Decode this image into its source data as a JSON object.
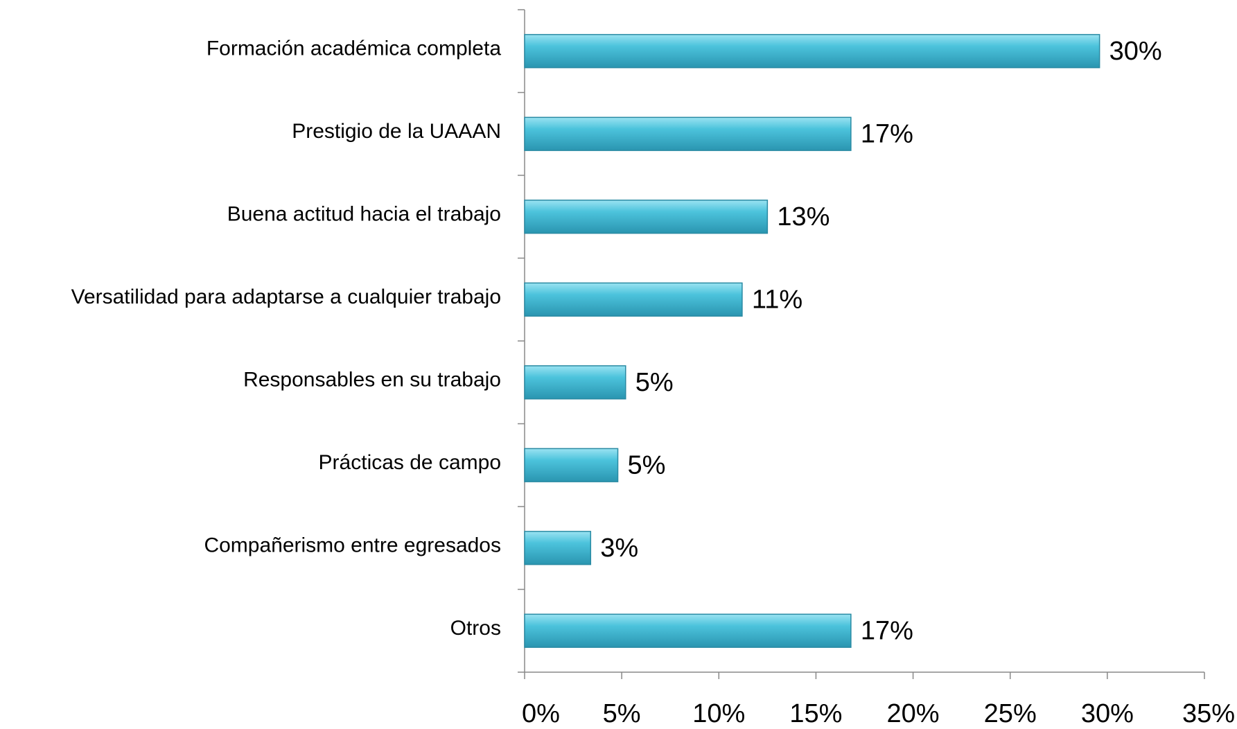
{
  "chart_data": {
    "type": "barh",
    "categories": [
      "Formación académica completa",
      "Prestigio de la UAAAN",
      "Buena actitud hacia el trabajo",
      "Versatilidad para adaptarse a cualquier trabajo",
      "Responsables en su trabajo",
      "Prácticas de campo",
      "Compañerismo entre egresados",
      "Otros"
    ],
    "values": [
      29.6,
      16.8,
      12.5,
      11.2,
      5.2,
      4.8,
      3.4,
      16.8
    ],
    "value_labels": [
      "30%",
      "17%",
      "13%",
      "11%",
      "5%",
      "5%",
      "3%",
      "17%"
    ],
    "color": "#3fb3cf",
    "xlim": [
      0,
      35
    ],
    "xticks": [
      {
        "value": 0,
        "label": "0%"
      },
      {
        "value": 5,
        "label": "5%"
      },
      {
        "value": 10,
        "label": "10%"
      },
      {
        "value": 15,
        "label": "15%"
      },
      {
        "value": 20,
        "label": "20%"
      },
      {
        "value": 25,
        "label": "25%"
      },
      {
        "value": 30,
        "label": "30%"
      },
      {
        "value": 35,
        "label": "35%"
      }
    ],
    "grid": false
  }
}
